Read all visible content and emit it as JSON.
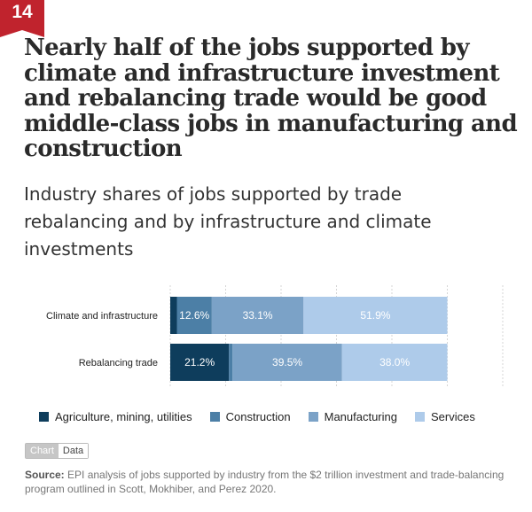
{
  "figure_number": "14",
  "title": "Nearly half of the jobs supported by climate and infrastructure investment and rebalancing trade would be good middle-class jobs in manufacturing and construction",
  "subtitle": "Industry shares of jobs supported by trade rebalancing and by infrastructure and climate investments",
  "tabs": {
    "chart": "Chart",
    "data": "Data"
  },
  "source": {
    "label": "Source:",
    "text": "EPI analysis of jobs supported by industry from the $2 trillion investment and trade-balancing program outlined in Scott, Mokhiber, and Perez 2020."
  },
  "chart_data": {
    "type": "bar",
    "orientation": "horizontal",
    "stacked": true,
    "categories": [
      "Climate and infrastructure",
      "Rebalancing trade"
    ],
    "series": [
      {
        "name": "Agriculture, mining, utilities",
        "values": [
          2.4,
          21.2
        ],
        "labels": [
          "",
          "21.2%"
        ],
        "color": "#0e3d5c"
      },
      {
        "name": "Construction",
        "values": [
          12.6,
          1.3
        ],
        "labels": [
          "12.6%",
          ""
        ],
        "color": "#4c7fa6"
      },
      {
        "name": "Manufacturing",
        "values": [
          33.1,
          39.5
        ],
        "labels": [
          "33.1%",
          "39.5%"
        ],
        "color": "#7ba2c7"
      },
      {
        "name": "Services",
        "values": [
          51.9,
          38.0
        ],
        "labels": [
          "51.9%",
          "38.0%"
        ],
        "color": "#aecbea"
      }
    ],
    "xlim": [
      0,
      120
    ],
    "grid": true,
    "legend": "bottom"
  }
}
